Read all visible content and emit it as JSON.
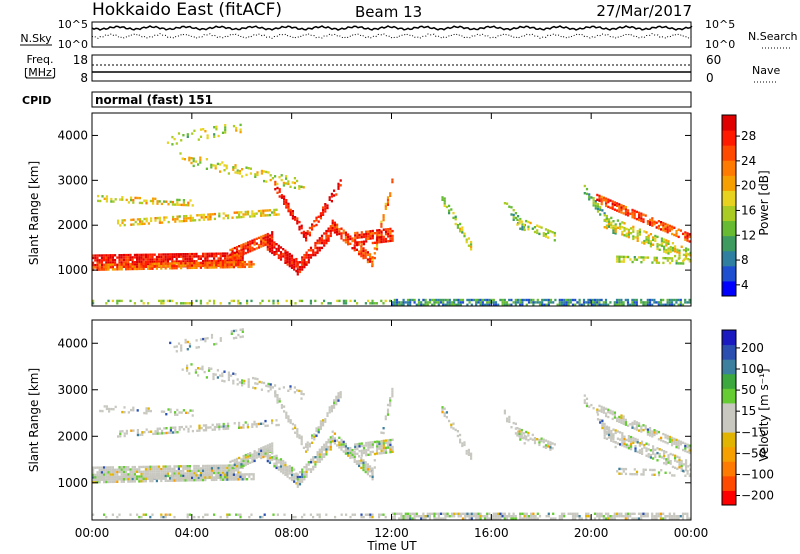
{
  "header": {
    "title": "Hokkaido East (fitACF)",
    "beam": "Beam 13",
    "date": "27/Mar/2017"
  },
  "noise_panel": {
    "left_label": "N.Sky",
    "right_label": "N.Search",
    "left_ticks": [
      "10^5",
      "10^0"
    ],
    "right_ticks": [
      "10^5",
      "10^0"
    ]
  },
  "freq_panel": {
    "left_label_line1": "Freq.",
    "left_label_line2": "[MHz]",
    "left_ticks": [
      "18",
      "8"
    ],
    "right_label": "Nave",
    "right_ticks": [
      "60",
      "0"
    ]
  },
  "cpid": {
    "label": "CPID",
    "value": "normal (fast) 151"
  },
  "chart_data": [
    {
      "type": "heatmap",
      "name": "power",
      "ylabel": "Slant Range [km]",
      "yticks": [
        1000,
        2000,
        3000,
        4000
      ],
      "ylim": [
        200,
        4500
      ],
      "x_ticks": [
        "00:00",
        "04:00",
        "08:00",
        "12:00",
        "16:00",
        "20:00",
        "00:00"
      ],
      "xlim_hours": [
        0,
        24
      ],
      "colorbar": {
        "label": "Power [dB]",
        "ticks": [
          "28",
          "24",
          "20",
          "16",
          "12",
          "8",
          "4"
        ],
        "colors": [
          "#0000ff",
          "#1e4fd0",
          "#2f7fa0",
          "#3d9b60",
          "#66bb33",
          "#aacc22",
          "#e6d21f",
          "#f5a000",
          "#ff7a00",
          "#ff4a00",
          "#ff1a00",
          "#e00000"
        ]
      }
    },
    {
      "type": "heatmap",
      "name": "velocity",
      "ylabel": "Slant Range [km]",
      "yticks": [
        1000,
        2000,
        3000,
        4000
      ],
      "ylim": [
        200,
        4500
      ],
      "x_ticks": [
        "00:00",
        "04:00",
        "08:00",
        "12:00",
        "16:00",
        "20:00",
        "00:00"
      ],
      "xlabel": "Time UT",
      "xlim_hours": [
        0,
        24
      ],
      "colorbar": {
        "label": "Velocity [m s⁻¹]",
        "ticks": [
          "200",
          "100",
          "50",
          "15",
          "−15",
          "−50",
          "−100",
          "−200"
        ],
        "colors": [
          "#ff0000",
          "#ff4a00",
          "#ff7a00",
          "#f5a000",
          "#e0b400",
          "#c8c8c0",
          "#c8c8c0",
          "#66cc33",
          "#3da83d",
          "#3d7f9f",
          "#2a4fb0",
          "#1a1ac0"
        ]
      }
    }
  ]
}
